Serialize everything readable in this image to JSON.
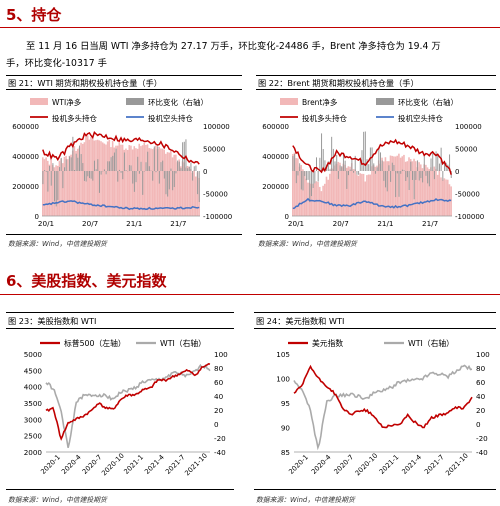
{
  "section5": {
    "heading": "5、持仓"
  },
  "paragraph": {
    "line1": "至 11 月 16 日当周 WTI 净多持仓为 27.17 万手，环比变化-24486 手，Brent 净多持仓为 19.4 万",
    "line2": "手，环比变化-10317 手"
  },
  "fig21": {
    "title": "图 21：WTI 期货和期权投机持仓量（手）",
    "source": "数据来源：Wind，中信建投期货",
    "legend": [
      "WTI净多",
      "环比变化（右轴）",
      "投机多头持仓",
      "投机空头持仓"
    ],
    "colors": {
      "net": "#f2b8b8",
      "change": "#999999",
      "long": "#c00000",
      "short": "#4472c4"
    },
    "chart_data": {
      "type": "bar",
      "left_axis_ticks": [
        "600000",
        "400000",
        "200000",
        "0"
      ],
      "right_axis_ticks": [
        "100000",
        "50000",
        "0",
        "-50000",
        "-100000"
      ],
      "x_ticks": [
        "20/1",
        "20/7",
        "21/1",
        "21/7"
      ],
      "ylim_left": [
        0,
        600000
      ],
      "ylim_right": [
        -100000,
        100000
      ],
      "x": [
        "20/1",
        "20/3",
        "20/5",
        "20/7",
        "20/9",
        "20/11",
        "21/1",
        "21/3",
        "21/5",
        "21/7",
        "21/9",
        "21/11"
      ],
      "series": [
        {
          "name": "WTI净多",
          "values": [
            380000,
            340000,
            420000,
            520000,
            500000,
            480000,
            460000,
            470000,
            450000,
            420000,
            330000,
            272000
          ]
        },
        {
          "name": "投机多头持仓",
          "values": [
            430000,
            380000,
            470000,
            540000,
            540000,
            520000,
            500000,
            510000,
            490000,
            450000,
            390000,
            340000
          ]
        },
        {
          "name": "投机空头持仓",
          "values": [
            70000,
            90000,
            100000,
            80000,
            70000,
            60000,
            50000,
            50000,
            50000,
            50000,
            55000,
            60000
          ]
        },
        {
          "name": "环比变化（右轴）",
          "values": [
            15000,
            -40000,
            50000,
            20000,
            -10000,
            10000,
            5000,
            -15000,
            20000,
            -30000,
            30000,
            -24486
          ]
        }
      ]
    }
  },
  "fig22": {
    "title": "图 22：Brent 期货和期权投机持仓量（手）",
    "source": "数据来源：Wind，中信建投期货",
    "legend": [
      "Brent净多",
      "环比变化（右轴）",
      "投机多头持仓",
      "投机空头持仓"
    ],
    "colors": {
      "net": "#f2b8b8",
      "change": "#999999",
      "long": "#c00000",
      "short": "#4472c4"
    },
    "chart_data": {
      "type": "bar",
      "left_axis_ticks": [
        "600000",
        "400000",
        "200000",
        "0"
      ],
      "right_axis_ticks": [
        "100000",
        "50000",
        "0",
        "-50000",
        "-100000"
      ],
      "x_ticks": [
        "20/1",
        "20/7",
        "21/1",
        "21/7"
      ],
      "ylim_left": [
        0,
        600000
      ],
      "ylim_right": [
        -100000,
        100000
      ],
      "x": [
        "20/1",
        "20/3",
        "20/5",
        "20/7",
        "20/9",
        "20/11",
        "21/1",
        "21/3",
        "21/5",
        "21/7",
        "21/9",
        "21/11"
      ],
      "series": [
        {
          "name": "Brent净多",
          "values": [
            420000,
            250000,
            190000,
            350000,
            340000,
            250000,
            370000,
            400000,
            380000,
            330000,
            300000,
            194000
          ]
        },
        {
          "name": "投机多头持仓",
          "values": [
            470000,
            330000,
            290000,
            420000,
            400000,
            350000,
            460000,
            500000,
            470000,
            420000,
            420000,
            290000
          ]
        },
        {
          "name": "投机空头持仓",
          "values": [
            50000,
            110000,
            100000,
            70000,
            70000,
            100000,
            70000,
            60000,
            70000,
            90000,
            110000,
            100000
          ]
        },
        {
          "name": "环比变化（右轴）",
          "values": [
            20000,
            -60000,
            40000,
            30000,
            -20000,
            60000,
            10000,
            -30000,
            -20000,
            -15000,
            25000,
            -10317
          ]
        }
      ]
    }
  },
  "section6": {
    "heading": "6、美股指数、美元指数"
  },
  "fig23": {
    "title": "图 23：美股指数和 WTI",
    "source": "数据来源：Wind，中信建投期货",
    "colors": {
      "main": "#c00000",
      "wti": "#aaaaaa"
    },
    "chart_data": {
      "type": "line",
      "left_axis_ticks": [
        "5000",
        "4500",
        "4000",
        "3500",
        "3000",
        "2500",
        "2000"
      ],
      "right_axis_ticks": [
        "100",
        "80",
        "60",
        "40",
        "20",
        "0",
        "-20",
        "-40"
      ],
      "x_ticks": [
        "2020-1",
        "2020-4",
        "2020-7",
        "2020-10",
        "2021-1",
        "2021-4",
        "2021-7",
        "2021-10"
      ],
      "ylim_left": [
        2000,
        5000
      ],
      "ylim_right": [
        -40,
        100
      ],
      "x": [
        "2020-1",
        "2020-2",
        "2020-3",
        "2020-4",
        "2020-5",
        "2020-6",
        "2020-7",
        "2020-8",
        "2020-9",
        "2020-10",
        "2020-11",
        "2020-12",
        "2021-1",
        "2021-2",
        "2021-3",
        "2021-4",
        "2021-5",
        "2021-6",
        "2021-7",
        "2021-8",
        "2021-9",
        "2021-10",
        "2021-11"
      ],
      "series": [
        {
          "name": "标普500（左轴）",
          "values": [
            3250,
            3350,
            2400,
            2900,
            3000,
            3100,
            3250,
            3500,
            3350,
            3300,
            3600,
            3750,
            3750,
            3900,
            3950,
            4200,
            4200,
            4300,
            4400,
            4500,
            4350,
            4600,
            4700
          ]
        },
        {
          "name": "WTI（右轴）",
          "values": [
            60,
            50,
            20,
            -37,
            30,
            40,
            41,
            42,
            40,
            36,
            45,
            48,
            52,
            60,
            62,
            63,
            66,
            73,
            72,
            68,
            75,
            84,
            78
          ]
        }
      ]
    }
  },
  "fig24": {
    "title": "图 24：美元指数和 WTI",
    "source": "数据来源：Wind，中信建投期货",
    "colors": {
      "main": "#c00000",
      "wti": "#aaaaaa"
    },
    "chart_data": {
      "type": "line",
      "left_axis_ticks": [
        "105",
        "100",
        "95",
        "90",
        "85"
      ],
      "right_axis_ticks": [
        "100",
        "80",
        "60",
        "40",
        "20",
        "0",
        "-20",
        "-40"
      ],
      "x_ticks": [
        "2020-1",
        "2020-4",
        "2020-7",
        "2020-10",
        "2021-1",
        "2021-4",
        "2021-7",
        "2021-10"
      ],
      "ylim_left": [
        85,
        105
      ],
      "ylim_right": [
        -40,
        100
      ],
      "x": [
        "2020-1",
        "2020-2",
        "2020-3",
        "2020-4",
        "2020-5",
        "2020-6",
        "2020-7",
        "2020-8",
        "2020-9",
        "2020-10",
        "2020-11",
        "2020-12",
        "2021-1",
        "2021-2",
        "2021-3",
        "2021-4",
        "2021-5",
        "2021-6",
        "2021-7",
        "2021-8",
        "2021-9",
        "2021-10",
        "2021-11"
      ],
      "series": [
        {
          "name": "美元指数",
          "values": [
            97,
            98.5,
            102.5,
            100,
            98.5,
            97,
            94,
            92.5,
            93.5,
            93.5,
            92,
            90,
            90.5,
            90.5,
            92.5,
            91,
            90,
            92,
            92.5,
            93,
            94,
            94,
            96
          ]
        },
        {
          "name": "WTI（右轴）",
          "values": [
            60,
            50,
            20,
            -37,
            30,
            40,
            41,
            42,
            40,
            36,
            45,
            48,
            52,
            60,
            62,
            63,
            66,
            73,
            72,
            68,
            75,
            84,
            78
          ]
        }
      ]
    }
  }
}
